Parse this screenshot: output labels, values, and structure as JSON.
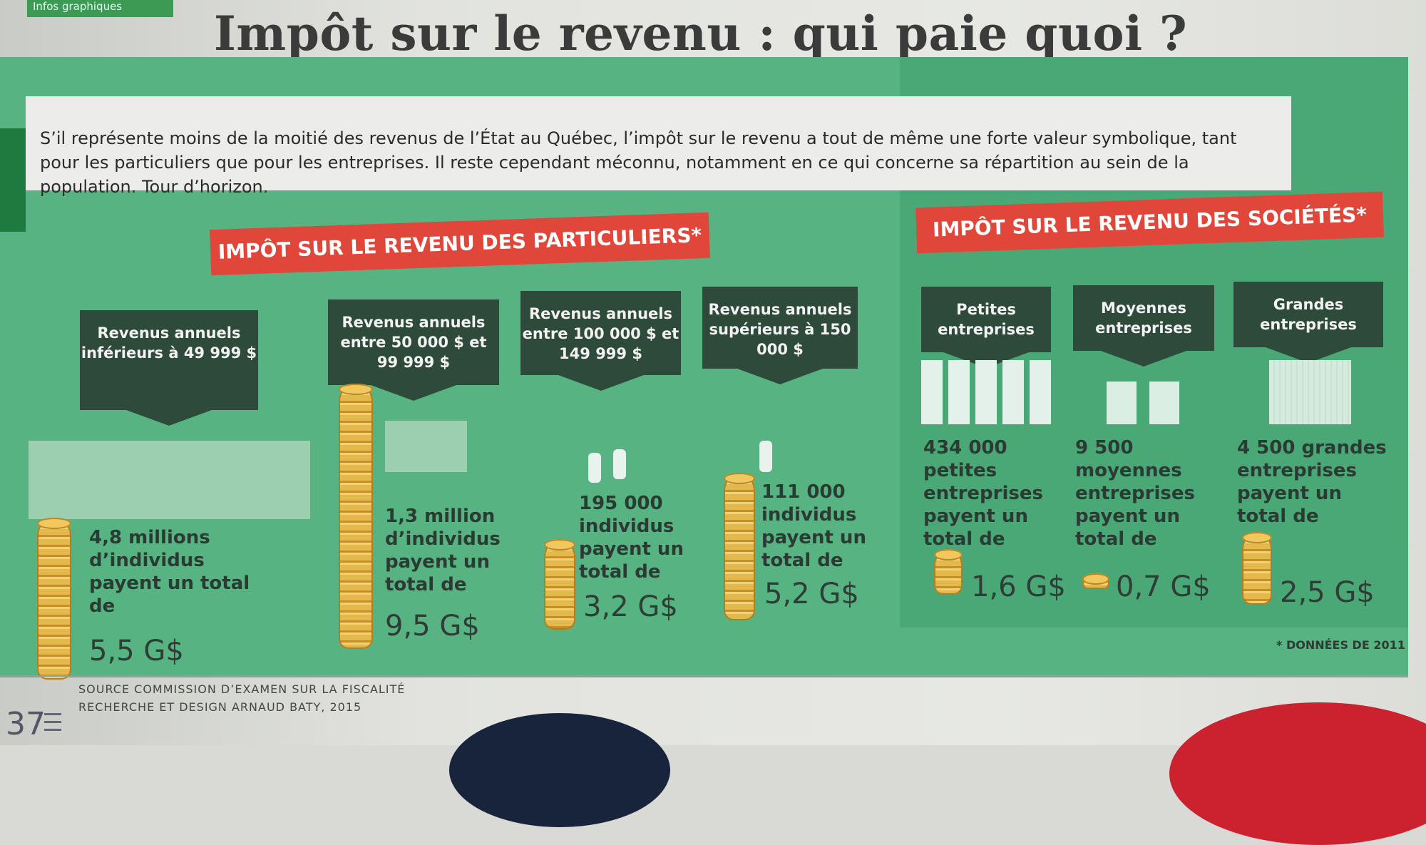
{
  "tag": "Infos graphiques",
  "title": "Impôt sur le revenu : qui paie quoi ?",
  "intro": "S’il représente moins de la moitié des revenus de l’État au Québec, l’impôt sur le revenu a tout de même une forte valeur symbolique, tant pour les particuliers que pour les entreprises. Il reste cependant méconnu, notamment en ce qui concerne sa répartition au sein de la population. Tour d’horizon.",
  "particuliers": {
    "title": "IMPÔT SUR LE REVENU DES PARTICULIERS*",
    "groups": [
      {
        "header": "Revenus annuels inférieurs à 49 999 $",
        "text": "4,8 millions d’individus payent un total de",
        "amount": "5,5 G$"
      },
      {
        "header": "Revenus annuels entre 50 000 $ et 99 999 $",
        "text": "1,3 million d’individus payent un total de",
        "amount": "9,5 G$"
      },
      {
        "header": "Revenus annuels entre 100 000 $ et 149 999 $",
        "text": "195 000 individus payent un total de",
        "amount": "3,2 G$"
      },
      {
        "header": "Revenus annuels supérieurs à 150 000 $",
        "text": "111 000 individus payent un total de",
        "amount": "5,2 G$"
      }
    ]
  },
  "societes": {
    "title": "IMPÔT SUR LE REVENU DES SOCIÉTÉS*",
    "groups": [
      {
        "header": "Petites entreprises",
        "text": "434 000 petites entreprises payent un total de",
        "amount": "1,6 G$"
      },
      {
        "header": "Moyennes entreprises",
        "text": "9 500 moyennes entreprises payent un total de",
        "amount": "0,7 G$"
      },
      {
        "header": "Grandes entreprises",
        "text": "4 500 grandes entreprises payent un total de",
        "amount": "2,5 G$"
      }
    ]
  },
  "note": "* DONNÉES DE 2011",
  "source": "SOURCE COMMISSION D’EXAMEN SUR LA FISCALITÉ",
  "credits": "RECHERCHE ET DESIGN ARNAUD BATY, 2015",
  "page_number": "37"
}
